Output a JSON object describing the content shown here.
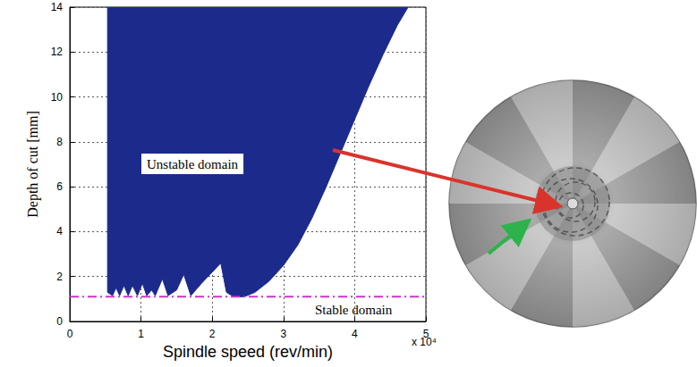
{
  "chart_data": {
    "type": "line",
    "xlabel": "Spindle speed (rev/min)",
    "ylabel": "Depth of cut [mm]",
    "annotations": [
      "Unstable domain",
      "Stable domain",
      "x 10⁴"
    ],
    "xlim": [
      0,
      5
    ],
    "xticks": [
      0,
      1,
      2,
      3,
      4,
      5
    ],
    "ylim": [
      0,
      14
    ],
    "yticks": [
      0,
      2,
      4,
      6,
      8,
      10,
      12,
      14
    ],
    "grid": true,
    "series": [
      {
        "type": "area",
        "color": "#1c2a8c",
        "line_style": "solid",
        "x": [
          0.53,
          0.53,
          0.6,
          0.65,
          0.7,
          0.76,
          0.82,
          0.88,
          0.95,
          1.02,
          1.08,
          1.15,
          1.2,
          1.3,
          1.38,
          1.5,
          1.6,
          1.7,
          1.85,
          2.0,
          2.12,
          2.2,
          2.3,
          2.45,
          2.6,
          2.8,
          3.0,
          3.2,
          3.4,
          3.6,
          3.8,
          4.0,
          4.2,
          4.4,
          4.6,
          4.75
        ],
        "values": [
          14,
          1.3,
          1.15,
          1.5,
          1.15,
          1.6,
          1.15,
          1.6,
          1.15,
          1.7,
          1.15,
          1.4,
          1.15,
          1.9,
          1.15,
          1.4,
          2.1,
          1.15,
          1.7,
          2.2,
          2.6,
          1.3,
          1.1,
          1.1,
          1.3,
          1.8,
          2.5,
          3.4,
          4.6,
          6.0,
          7.5,
          9.0,
          10.5,
          11.9,
          13.2,
          14
        ]
      },
      {
        "type": "line",
        "color": "#cc33cc",
        "line_style": "dashdot",
        "x": [
          0,
          5
        ],
        "values": [
          1.1,
          1.1
        ]
      }
    ]
  }
}
